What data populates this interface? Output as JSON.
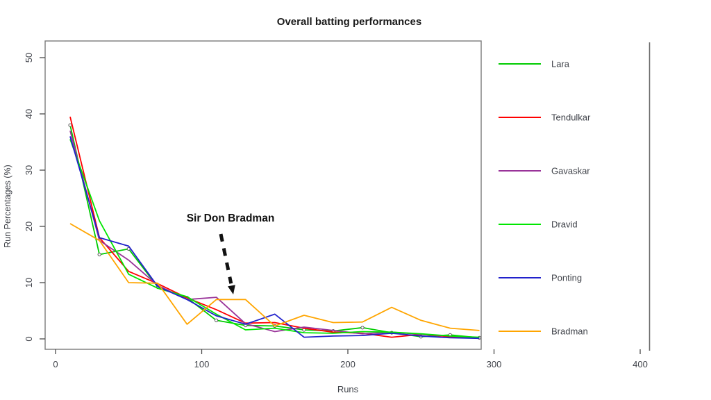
{
  "title": "Overall batting performances",
  "annotation": {
    "text": "Sir Don Bradman"
  },
  "axes": {
    "x": {
      "label": "Runs",
      "ticks": [
        0,
        100,
        200,
        300,
        400
      ]
    },
    "y": {
      "label": "Run Percentages (%)",
      "ticks": [
        0,
        10,
        20,
        30,
        40,
        50
      ]
    }
  },
  "chart_data": {
    "type": "line",
    "title": "Overall batting performances",
    "xlabel": "Runs",
    "ylabel": "Run Percentages (%)",
    "xlim": [
      0,
      400
    ],
    "ylim": [
      0,
      50
    ],
    "grid": false,
    "legend_position": "right-outside",
    "x": [
      10,
      30,
      50,
      70,
      90,
      110,
      130,
      150,
      170,
      190,
      210,
      230,
      250,
      270,
      290
    ],
    "series": [
      {
        "name": "Lara",
        "color": "#00cc00",
        "marker": "circle",
        "values": [
          38.0,
          15.0,
          16.0,
          9.2,
          7.3,
          3.3,
          2.4,
          2.3,
          1.6,
          1.4,
          2.0,
          1.1,
          0.4,
          0.7,
          0.2
        ]
      },
      {
        "name": "Tendulkar",
        "color": "#ff0000",
        "marker": "none",
        "values": [
          39.5,
          18.0,
          12.0,
          9.8,
          7.3,
          5.2,
          2.8,
          2.9,
          1.9,
          1.2,
          1.0,
          0.3,
          0.8,
          0.4,
          0.1
        ]
      },
      {
        "name": "Gavaskar",
        "color": "#993399",
        "marker": "none",
        "values": [
          37.0,
          17.5,
          14.0,
          9.5,
          7.0,
          7.4,
          2.7,
          1.3,
          2.1,
          1.5,
          0.9,
          1.2,
          0.8,
          0.5,
          0.2
        ]
      },
      {
        "name": "Dravid",
        "color": "#00e600",
        "marker": "none",
        "values": [
          35.5,
          21.0,
          11.5,
          9.0,
          7.5,
          4.4,
          1.6,
          1.9,
          1.1,
          1.0,
          1.3,
          1.2,
          0.9,
          0.5,
          0.3
        ]
      },
      {
        "name": "Ponting",
        "color": "#2222cc",
        "marker": "none",
        "values": [
          36.0,
          18.0,
          16.5,
          9.3,
          7.0,
          4.1,
          2.6,
          4.4,
          0.3,
          0.5,
          0.6,
          1.0,
          0.5,
          0.2,
          0.1
        ]
      },
      {
        "name": "Bradman",
        "color": "#ffa500",
        "marker": "none",
        "values": [
          20.5,
          17.5,
          10.0,
          9.9,
          2.6,
          7.0,
          7.0,
          2.3,
          4.2,
          2.9,
          3.0,
          5.6,
          3.3,
          1.9,
          1.5
        ]
      }
    ],
    "annotation": {
      "text": "Sir Don Bradman",
      "target_x": 120,
      "target_y": 7,
      "target_series": "Bradman"
    }
  }
}
